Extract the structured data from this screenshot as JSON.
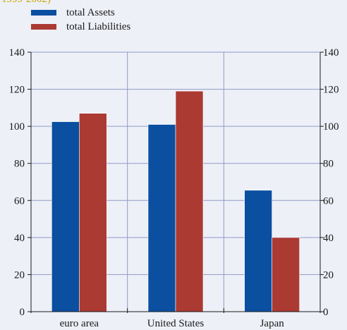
{
  "subtitle_fragment": "1999-2002)",
  "colors": {
    "assets": "#0a4fa0",
    "liabilities": "#ab3a33",
    "grid": "#8f9bc8",
    "axis": "#1a1a1a",
    "fragment_text": "#c8a400"
  },
  "chart_data": {
    "type": "bar",
    "categories": [
      "euro area",
      "United States",
      "Japan"
    ],
    "series": [
      {
        "name": "total Assets",
        "values": [
          102.5,
          101,
          65.5
        ]
      },
      {
        "name": "total Liabilities",
        "values": [
          107,
          119,
          40
        ]
      }
    ],
    "ylim": [
      0,
      140
    ],
    "yticks": [
      0,
      20,
      40,
      60,
      80,
      100,
      120,
      140
    ],
    "grid": true,
    "legend_position": "top-left",
    "right_axis_mirrored": true
  }
}
